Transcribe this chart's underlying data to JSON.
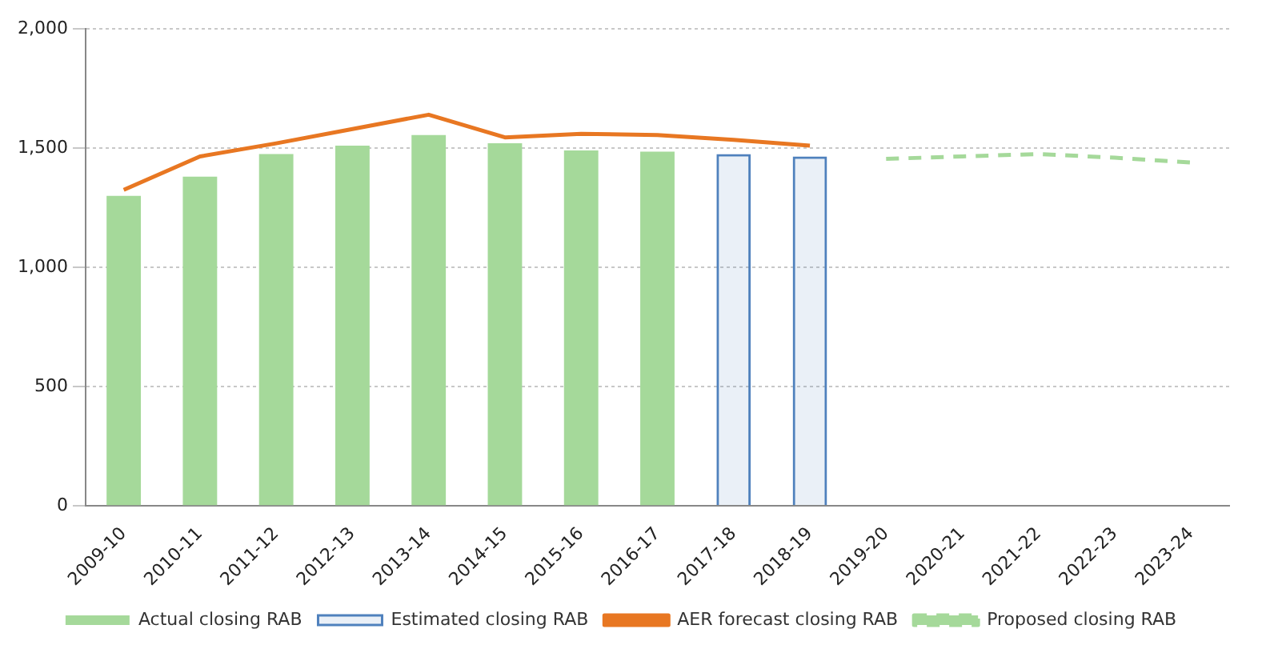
{
  "chart_data": {
    "type": "bar",
    "categories": [
      "2009-10",
      "2010-11",
      "2011-12",
      "2012-13",
      "2013-14",
      "2014-15",
      "2015-16",
      "2016-17",
      "2017-18",
      "2018-19",
      "2019-20",
      "2020-21",
      "2021-22",
      "2022-23",
      "2023-24"
    ],
    "series": [
      {
        "name": "Actual closing RAB",
        "color": "#a5d99a",
        "values": [
          1300,
          1380,
          1475,
          1510,
          1555,
          1520,
          1490,
          1485,
          null,
          null,
          null,
          null,
          null,
          null,
          null
        ]
      },
      {
        "name": "Estimated closing RAB",
        "color": "#4f81bd",
        "values": [
          null,
          null,
          null,
          null,
          null,
          null,
          null,
          null,
          1475,
          1465,
          null,
          null,
          null,
          null,
          null
        ]
      },
      {
        "name": "AER forecast closing RAB",
        "type": "line",
        "color": "#e87722",
        "line_style": "solid",
        "values": [
          1325,
          1465,
          1520,
          1580,
          1640,
          1545,
          1560,
          1555,
          1535,
          1510,
          null,
          null,
          null,
          null,
          null
        ]
      },
      {
        "name": "Proposed closing RAB",
        "type": "line",
        "color": "#a5d99a",
        "line_style": "dashed",
        "values": [
          null,
          null,
          null,
          null,
          null,
          null,
          null,
          null,
          null,
          null,
          1455,
          1465,
          1475,
          1460,
          1440
        ]
      }
    ],
    "ylim": [
      0,
      2000
    ],
    "yticks": [
      {
        "value": 0,
        "label": "0"
      },
      {
        "value": 500,
        "label": "500"
      },
      {
        "value": 1000,
        "label": "1,000"
      },
      {
        "value": 1500,
        "label": "1,500"
      },
      {
        "value": 2000,
        "label": "2,000"
      }
    ],
    "grid": "y",
    "legend": "bottom",
    "marker": "none"
  }
}
